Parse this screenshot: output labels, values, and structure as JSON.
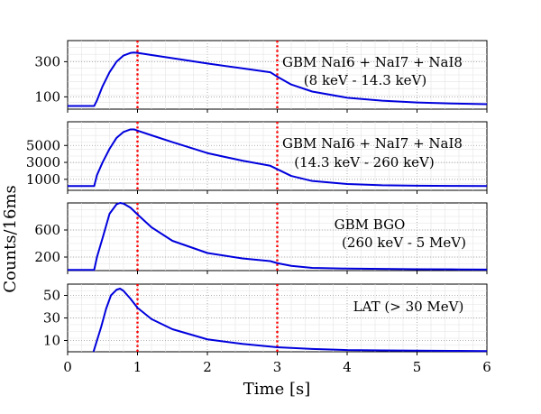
{
  "chart_data": {
    "type": "line",
    "shared_xlabel": "Time [s]",
    "shared_ylabel": "Counts/16ms",
    "xlim": [
      0,
      6
    ],
    "xticks": [
      "0",
      "1",
      "2",
      "3",
      "4",
      "5",
      "6"
    ],
    "vlines": [
      1,
      3
    ],
    "line_color": "#0000dd",
    "vline_color": "#ff0000",
    "panels": [
      {
        "label_line1": "GBM NaI6 + NaI7 + NaI8",
        "label_line2": "(8 keV - 14.3 keV)",
        "ylim": [
          30,
          420
        ],
        "yticks": [
          100,
          300
        ],
        "ytick_labels": [
          "100",
          "300"
        ],
        "series": [
          {
            "name": "GBM NaI 8-14.3 keV",
            "x": [
              0,
              0.38,
              0.42,
              0.5,
              0.6,
              0.7,
              0.8,
              0.9,
              0.95,
              1.0,
              1.2,
              1.5,
              2.0,
              2.5,
              2.9,
              3.0,
              3.2,
              3.5,
              4.0,
              4.5,
              5.0,
              5.5,
              6.0
            ],
            "y": [
              48,
              48,
              80,
              160,
              240,
              300,
              335,
              350,
              352,
              350,
              338,
              320,
              290,
              262,
              240,
              215,
              170,
              130,
              95,
              78,
              68,
              62,
              58
            ]
          }
        ]
      },
      {
        "label_line1": "GBM NaI6 + NaI7 + NaI8",
        "label_line2": "(14.3 keV - 260 keV)",
        "ylim": [
          -300,
          7800
        ],
        "yticks": [
          1000,
          3000,
          5000
        ],
        "ytick_labels": [
          "1000",
          "3000",
          "5000"
        ],
        "series": [
          {
            "name": "GBM NaI 14.3-260 keV",
            "x": [
              0,
              0.38,
              0.42,
              0.5,
              0.6,
              0.7,
              0.8,
              0.9,
              0.95,
              1.0,
              1.2,
              1.5,
              2.0,
              2.5,
              2.9,
              3.0,
              3.2,
              3.5,
              4.0,
              4.5,
              5.0,
              5.5,
              6.0
            ],
            "y": [
              200,
              200,
              1500,
              3000,
              4600,
              5900,
              6600,
              6900,
              6900,
              6750,
              6200,
              5400,
              4100,
              3200,
              2600,
              2200,
              1400,
              800,
              450,
              300,
              250,
              220,
              200
            ]
          }
        ]
      },
      {
        "label_line1": "GBM BGO",
        "label_line2": "(260 keV - 5 MeV)",
        "ylim": [
          0,
          1000
        ],
        "yticks": [
          200,
          600
        ],
        "ytick_labels": [
          "200",
          "600"
        ],
        "series": [
          {
            "name": "GBM BGO 260 keV-5 MeV",
            "x": [
              0,
              0.38,
              0.42,
              0.5,
              0.6,
              0.7,
              0.75,
              0.8,
              0.9,
              1.0,
              1.2,
              1.5,
              2.0,
              2.5,
              2.9,
              3.0,
              3.2,
              3.5,
              4.0,
              4.5,
              5.0,
              5.5,
              6.0
            ],
            "y": [
              10,
              10,
              200,
              480,
              840,
              980,
              1000,
              990,
              930,
              830,
              640,
              440,
              260,
              180,
              140,
              110,
              70,
              40,
              30,
              25,
              20,
              18,
              15
            ]
          }
        ]
      },
      {
        "label_line1": "LAT (> 30 MeV)",
        "label_line2": "",
        "ylim": [
          0,
          60
        ],
        "yticks": [
          10,
          30,
          50
        ],
        "ytick_labels": [
          "10",
          "30",
          "50"
        ],
        "series": [
          {
            "name": "LAT > 30 MeV",
            "x": [
              0.37,
              0.42,
              0.48,
              0.55,
              0.62,
              0.7,
              0.75,
              0.8,
              0.9,
              1.0,
              1.2,
              1.5,
              2.0,
              2.5,
              3.0,
              3.5,
              4.0,
              4.5,
              5.0,
              5.5,
              6.0
            ],
            "y": [
              0,
              10,
              22,
              38,
              50,
              55,
              56,
              54,
              47,
              39,
              29,
              20,
              11,
              7,
              4,
              2.5,
              1.5,
              1.2,
              1.0,
              0.8,
              0.6
            ]
          }
        ]
      }
    ]
  }
}
